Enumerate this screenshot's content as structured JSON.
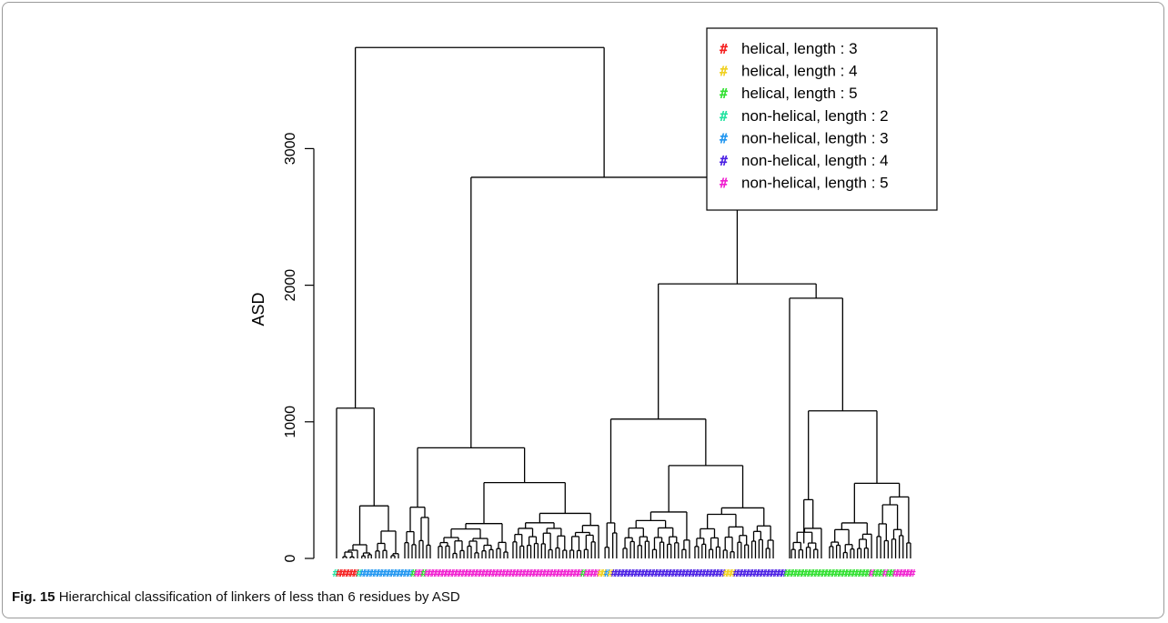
{
  "caption": {
    "label": "Fig. 15",
    "text": "Hierarchical classification of linkers of less than 6 residues by ASD"
  },
  "chart_data": {
    "type": "dendrogram",
    "ylabel": "ASD",
    "ylim": [
      0,
      3750
    ],
    "yticks": [
      0,
      1000,
      2000,
      3000
    ],
    "legend_position": "top-right",
    "legend_symbol": "#",
    "legend": [
      {
        "label": "helical, length : 3",
        "color": "#f52020"
      },
      {
        "label": "helical, length : 4",
        "color": "#f0d020"
      },
      {
        "label": "helical, length : 5",
        "color": "#30e030"
      },
      {
        "label": "non-helical, length : 2",
        "color": "#22e3a0"
      },
      {
        "label": "non-helical, length : 3",
        "color": "#2196f0"
      },
      {
        "label": "non-helical, length : 4",
        "color": "#4a1fe3"
      },
      {
        "label": "non-helical, length : 5",
        "color": "#f020d0"
      }
    ],
    "merge_heights": {
      "root": 3740,
      "main_right": 2790,
      "right_split": 2010,
      "right_right": 1905,
      "right_right_sub": 1080,
      "right_right_sub_b": 550,
      "right_right_sub_a": 430,
      "right_left": 1020,
      "right_left_sub": 680,
      "right_left_sub_b": 370,
      "right_left_sub_a": 340,
      "middle": 810,
      "middle_sub": 555,
      "middle_sub_b": 330,
      "middle_sub_a": 255,
      "middle_left": 375,
      "far_left": 1100,
      "far_left_sub": 385,
      "far_left_sub_b": 200,
      "far_left_sub_c": 100
    },
    "leaf_strip": [
      {
        "class": "non-helical, length : 2",
        "count": 1
      },
      {
        "class": "helical, length : 3",
        "count": 6
      },
      {
        "class": "non-helical, length : 2",
        "count": 1
      },
      {
        "class": "non-helical, length : 3",
        "count": 15
      },
      {
        "class": "helical, length : 5",
        "count": 1
      },
      {
        "class": "non-helical, length : 5",
        "count": 2
      },
      {
        "class": "helical, length : 5",
        "count": 1
      },
      {
        "class": "non-helical, length : 5",
        "count": 46
      },
      {
        "class": "helical, length : 5",
        "count": 1
      },
      {
        "class": "non-helical, length : 5",
        "count": 4
      },
      {
        "class": "helical, length : 4",
        "count": 2
      },
      {
        "class": "non-helical, length : 3",
        "count": 1
      },
      {
        "class": "helical, length : 4",
        "count": 1
      },
      {
        "class": "non-helical, length : 4",
        "count": 33
      },
      {
        "class": "helical, length : 4",
        "count": 3
      },
      {
        "class": "non-helical, length : 4",
        "count": 15
      },
      {
        "class": "helical, length : 5",
        "count": 25
      },
      {
        "class": "non-helical, length : 5",
        "count": 1
      },
      {
        "class": "helical, length : 5",
        "count": 3
      },
      {
        "class": "non-helical, length : 5",
        "count": 1
      },
      {
        "class": "helical, length : 5",
        "count": 2
      },
      {
        "class": "non-helical, length : 5",
        "count": 6
      }
    ]
  }
}
